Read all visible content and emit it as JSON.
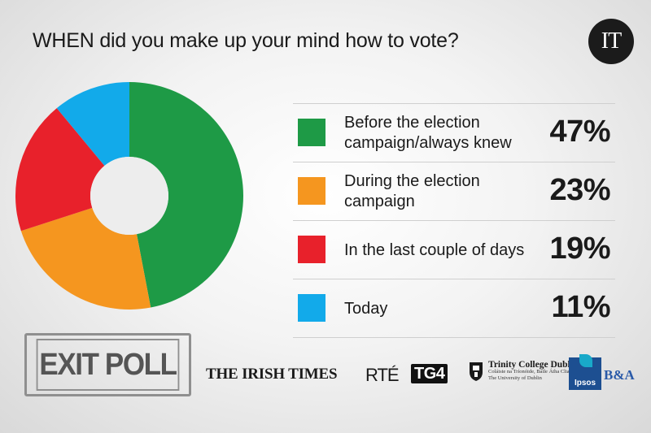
{
  "title": "WHEN did you make up your mind how to vote?",
  "brand_logo_text": "IT",
  "chart_data": {
    "type": "pie",
    "style": "donut",
    "categories": [
      "Before the election campaign/always knew",
      "During the election campaign",
      "In the last couple of days",
      "Today"
    ],
    "values": [
      47,
      23,
      19,
      11
    ],
    "labels": [
      "47%",
      "23%",
      "19%",
      "11%"
    ],
    "colors": [
      "#1e9a46",
      "#f5961f",
      "#e8212b",
      "#12aaea"
    ]
  },
  "legend": [
    {
      "label": "Before the election campaign/always knew",
      "pct": "47%"
    },
    {
      "label": "During the election campaign",
      "pct": "23%"
    },
    {
      "label": "In the last couple of days",
      "pct": "19%"
    },
    {
      "label": "Today",
      "pct": "11%"
    }
  ],
  "footer": {
    "exit_poll": "EXIT POLL",
    "irish_times": "THE IRISH TIMES",
    "rte": "RTÉ",
    "tg4": "TG4",
    "tcd_name": "Trinity College Dublin",
    "tcd_irish": "Coláiste na Tríonóide, Baile Átha Cliath",
    "tcd_univ": "The University of Dublin",
    "ipsos": "Ipsos",
    "ba": "B&A"
  }
}
